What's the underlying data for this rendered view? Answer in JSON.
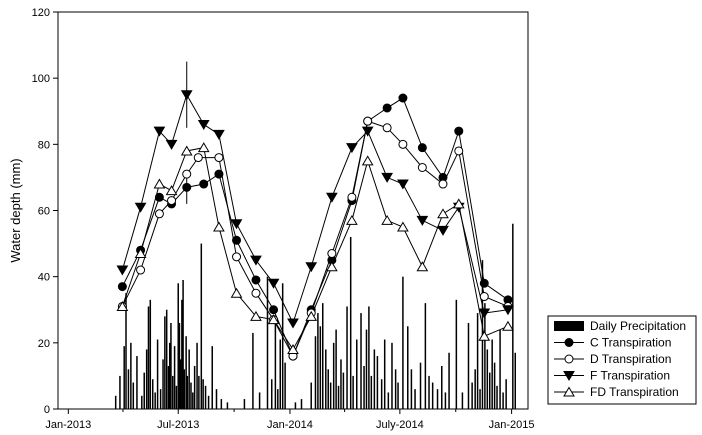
{
  "chart_data": {
    "type": "line",
    "ylabel": "Water depth (mm)",
    "xlabel": "",
    "ylim": [
      0,
      120
    ],
    "y_ticks": [
      0,
      20,
      40,
      60,
      80,
      100,
      120
    ],
    "x_ticks": [
      {
        "date": "2013-01-01",
        "label": "Jan-2013"
      },
      {
        "date": "2013-07-01",
        "label": "Jul-2013"
      },
      {
        "date": "2014-01-01",
        "label": "Jan-2014"
      },
      {
        "date": "2014-07-01",
        "label": "July-2014"
      },
      {
        "date": "2015-01-01",
        "label": "Jan-2015"
      }
    ],
    "xlim": [
      "2012-12-15",
      "2015-01-28"
    ],
    "grid": false,
    "legend_position": "bottom-right",
    "series": [
      {
        "name": "C Transpiration",
        "marker": "filled-circle",
        "points": [
          [
            "2013-03-31",
            37
          ],
          [
            "2013-04-30",
            48
          ],
          [
            "2013-05-31",
            64
          ],
          [
            "2013-06-20",
            62
          ],
          [
            "2013-07-15",
            67
          ],
          [
            "2013-08-12",
            68
          ],
          [
            "2013-09-06",
            71
          ],
          [
            "2013-10-05",
            51
          ],
          [
            "2013-11-06",
            39
          ],
          [
            "2013-12-05",
            30
          ],
          [
            "2014-01-06",
            16
          ],
          [
            "2014-02-05",
            30
          ],
          [
            "2014-03-11",
            45
          ],
          [
            "2014-04-13",
            63
          ],
          [
            "2014-05-09",
            87
          ],
          [
            "2014-06-10",
            91
          ],
          [
            "2014-07-06",
            94
          ],
          [
            "2014-08-07",
            79
          ],
          [
            "2014-09-10",
            70
          ],
          [
            "2014-10-06",
            84
          ],
          [
            "2014-11-17",
            38
          ],
          [
            "2014-12-26",
            33
          ]
        ]
      },
      {
        "name": "D Transpiration",
        "marker": "open-circle",
        "points": [
          [
            "2013-03-31",
            31
          ],
          [
            "2013-04-30",
            42
          ],
          [
            "2013-05-31",
            59
          ],
          [
            "2013-06-20",
            63
          ],
          [
            "2013-07-15",
            71
          ],
          [
            "2013-08-03",
            76
          ],
          [
            "2013-09-06",
            76
          ],
          [
            "2013-10-05",
            46
          ],
          [
            "2013-11-06",
            35
          ],
          [
            "2013-12-05",
            27
          ],
          [
            "2014-01-06",
            16
          ],
          [
            "2014-02-05",
            29
          ],
          [
            "2014-03-11",
            47
          ],
          [
            "2014-04-13",
            64
          ],
          [
            "2014-05-09",
            87
          ],
          [
            "2014-06-10",
            85
          ],
          [
            "2014-07-06",
            80
          ],
          [
            "2014-08-07",
            73
          ],
          [
            "2014-09-10",
            68
          ],
          [
            "2014-10-06",
            78
          ],
          [
            "2014-11-17",
            34
          ],
          [
            "2014-12-26",
            31
          ]
        ]
      },
      {
        "name": "F Transpiration",
        "marker": "filled-triangle-down",
        "points": [
          [
            "2013-03-31",
            42
          ],
          [
            "2013-04-30",
            61
          ],
          [
            "2013-05-31",
            84
          ],
          [
            "2013-06-20",
            80
          ],
          [
            "2013-07-15",
            95
          ],
          [
            "2013-08-12",
            86
          ],
          [
            "2013-09-06",
            83
          ],
          [
            "2013-10-05",
            56
          ],
          [
            "2013-11-06",
            45
          ],
          [
            "2013-12-05",
            38
          ],
          [
            "2014-01-06",
            26
          ],
          [
            "2014-02-05",
            43
          ],
          [
            "2014-03-11",
            64
          ],
          [
            "2014-04-13",
            79
          ],
          [
            "2014-05-09",
            84
          ],
          [
            "2014-06-10",
            70
          ],
          [
            "2014-07-06",
            68
          ],
          [
            "2014-08-07",
            57
          ],
          [
            "2014-09-10",
            54
          ],
          [
            "2014-10-06",
            61
          ],
          [
            "2014-11-17",
            29
          ],
          [
            "2014-12-26",
            30
          ]
        ]
      },
      {
        "name": "FD Transpiration",
        "marker": "open-triangle-up",
        "points": [
          [
            "2013-03-31",
            31
          ],
          [
            "2013-04-30",
            47
          ],
          [
            "2013-05-31",
            68
          ],
          [
            "2013-06-20",
            66
          ],
          [
            "2013-07-15",
            78
          ],
          [
            "2013-08-12",
            79
          ],
          [
            "2013-09-06",
            55
          ],
          [
            "2013-10-05",
            35
          ],
          [
            "2013-11-06",
            28
          ],
          [
            "2013-12-05",
            27
          ],
          [
            "2014-01-06",
            18
          ],
          [
            "2014-02-05",
            28
          ],
          [
            "2014-03-11",
            43
          ],
          [
            "2014-04-13",
            57
          ],
          [
            "2014-05-09",
            75
          ],
          [
            "2014-06-10",
            57
          ],
          [
            "2014-07-06",
            55
          ],
          [
            "2014-08-07",
            43
          ],
          [
            "2014-09-10",
            59
          ],
          [
            "2014-10-06",
            62
          ],
          [
            "2014-11-17",
            22
          ],
          [
            "2014-12-26",
            25
          ]
        ]
      },
      {
        "name": "Daily Precipitation",
        "type": "bar",
        "points": [
          [
            "2013-03-20",
            4
          ],
          [
            "2013-03-27",
            10
          ],
          [
            "2013-04-03",
            19
          ],
          [
            "2013-04-06",
            35
          ],
          [
            "2013-04-10",
            12
          ],
          [
            "2013-04-14",
            20
          ],
          [
            "2013-04-18",
            8
          ],
          [
            "2013-04-24",
            16
          ],
          [
            "2013-05-02",
            4
          ],
          [
            "2013-05-06",
            11
          ],
          [
            "2013-05-10",
            18
          ],
          [
            "2013-05-13",
            31
          ],
          [
            "2013-05-16",
            33
          ],
          [
            "2013-05-20",
            9
          ],
          [
            "2013-05-24",
            5
          ],
          [
            "2013-05-28",
            21
          ],
          [
            "2013-06-02",
            6
          ],
          [
            "2013-06-06",
            15
          ],
          [
            "2013-06-09",
            28
          ],
          [
            "2013-06-12",
            30
          ],
          [
            "2013-06-15",
            13
          ],
          [
            "2013-06-17",
            20
          ],
          [
            "2013-06-19",
            26
          ],
          [
            "2013-06-22",
            10
          ],
          [
            "2013-06-25",
            19
          ],
          [
            "2013-06-28",
            7
          ],
          [
            "2013-07-01",
            38
          ],
          [
            "2013-07-03",
            26
          ],
          [
            "2013-07-05",
            15
          ],
          [
            "2013-07-07",
            33
          ],
          [
            "2013-07-09",
            39
          ],
          [
            "2013-07-11",
            12
          ],
          [
            "2013-07-14",
            22
          ],
          [
            "2013-07-16",
            10
          ],
          [
            "2013-07-19",
            18
          ],
          [
            "2013-07-22",
            8
          ],
          [
            "2013-07-25",
            5
          ],
          [
            "2013-07-28",
            13
          ],
          [
            "2013-08-01",
            20
          ],
          [
            "2013-08-04",
            10
          ],
          [
            "2013-08-08",
            50
          ],
          [
            "2013-08-11",
            9
          ],
          [
            "2013-08-15",
            7
          ],
          [
            "2013-08-20",
            4
          ],
          [
            "2013-08-26",
            19
          ],
          [
            "2013-09-02",
            6
          ],
          [
            "2013-09-10",
            3
          ],
          [
            "2013-09-20",
            2
          ],
          [
            "2013-10-18",
            3
          ],
          [
            "2013-11-01",
            23
          ],
          [
            "2013-11-12",
            5
          ],
          [
            "2013-11-25",
            40
          ],
          [
            "2013-12-02",
            9
          ],
          [
            "2013-12-08",
            28
          ],
          [
            "2013-12-12",
            6
          ],
          [
            "2013-12-16",
            21
          ],
          [
            "2013-12-20",
            38
          ],
          [
            "2013-12-24",
            14
          ],
          [
            "2014-01-10",
            2
          ],
          [
            "2014-01-20",
            3
          ],
          [
            "2014-02-05",
            8
          ],
          [
            "2014-02-12",
            22
          ],
          [
            "2014-02-16",
            29
          ],
          [
            "2014-02-20",
            25
          ],
          [
            "2014-02-24",
            32
          ],
          [
            "2014-03-01",
            18
          ],
          [
            "2014-03-05",
            12
          ],
          [
            "2014-03-09",
            8
          ],
          [
            "2014-03-14",
            20
          ],
          [
            "2014-03-18",
            24
          ],
          [
            "2014-03-22",
            7
          ],
          [
            "2014-03-26",
            15
          ],
          [
            "2014-03-30",
            11
          ],
          [
            "2014-04-05",
            31
          ],
          [
            "2014-04-11",
            52
          ],
          [
            "2014-04-15",
            10
          ],
          [
            "2014-04-21",
            21
          ],
          [
            "2014-04-28",
            29
          ],
          [
            "2014-05-03",
            13
          ],
          [
            "2014-05-07",
            24
          ],
          [
            "2014-05-11",
            31
          ],
          [
            "2014-05-15",
            10
          ],
          [
            "2014-05-20",
            18
          ],
          [
            "2014-05-25",
            16
          ],
          [
            "2014-06-01",
            9
          ],
          [
            "2014-06-06",
            21
          ],
          [
            "2014-06-12",
            5
          ],
          [
            "2014-06-18",
            20
          ],
          [
            "2014-06-24",
            12
          ],
          [
            "2014-06-28",
            8
          ],
          [
            "2014-07-06",
            40
          ],
          [
            "2014-07-14",
            25
          ],
          [
            "2014-07-20",
            12
          ],
          [
            "2014-07-26",
            6
          ],
          [
            "2014-08-04",
            14
          ],
          [
            "2014-08-12",
            32
          ],
          [
            "2014-08-18",
            10
          ],
          [
            "2014-08-24",
            8
          ],
          [
            "2014-09-01",
            6
          ],
          [
            "2014-09-08",
            13
          ],
          [
            "2014-09-14",
            5
          ],
          [
            "2014-09-20",
            17
          ],
          [
            "2014-10-02",
            33
          ],
          [
            "2014-10-12",
            5
          ],
          [
            "2014-10-22",
            26
          ],
          [
            "2014-10-28",
            8
          ],
          [
            "2014-11-02",
            12
          ],
          [
            "2014-11-06",
            29
          ],
          [
            "2014-11-10",
            6
          ],
          [
            "2014-11-14",
            45
          ],
          [
            "2014-11-18",
            32
          ],
          [
            "2014-11-22",
            18
          ],
          [
            "2014-11-26",
            11
          ],
          [
            "2014-11-30",
            21
          ],
          [
            "2014-12-04",
            14
          ],
          [
            "2014-12-08",
            7
          ],
          [
            "2014-12-13",
            24
          ],
          [
            "2014-12-18",
            5
          ],
          [
            "2014-12-23",
            9
          ],
          [
            "2015-01-03",
            56
          ],
          [
            "2015-01-07",
            17
          ]
        ]
      }
    ],
    "error_bars": [
      {
        "series": "F Transpiration",
        "date": "2013-07-15",
        "low": 85,
        "high": 105
      },
      {
        "series": "C Transpiration",
        "date": "2013-07-15",
        "low": 62,
        "high": 72
      }
    ]
  }
}
